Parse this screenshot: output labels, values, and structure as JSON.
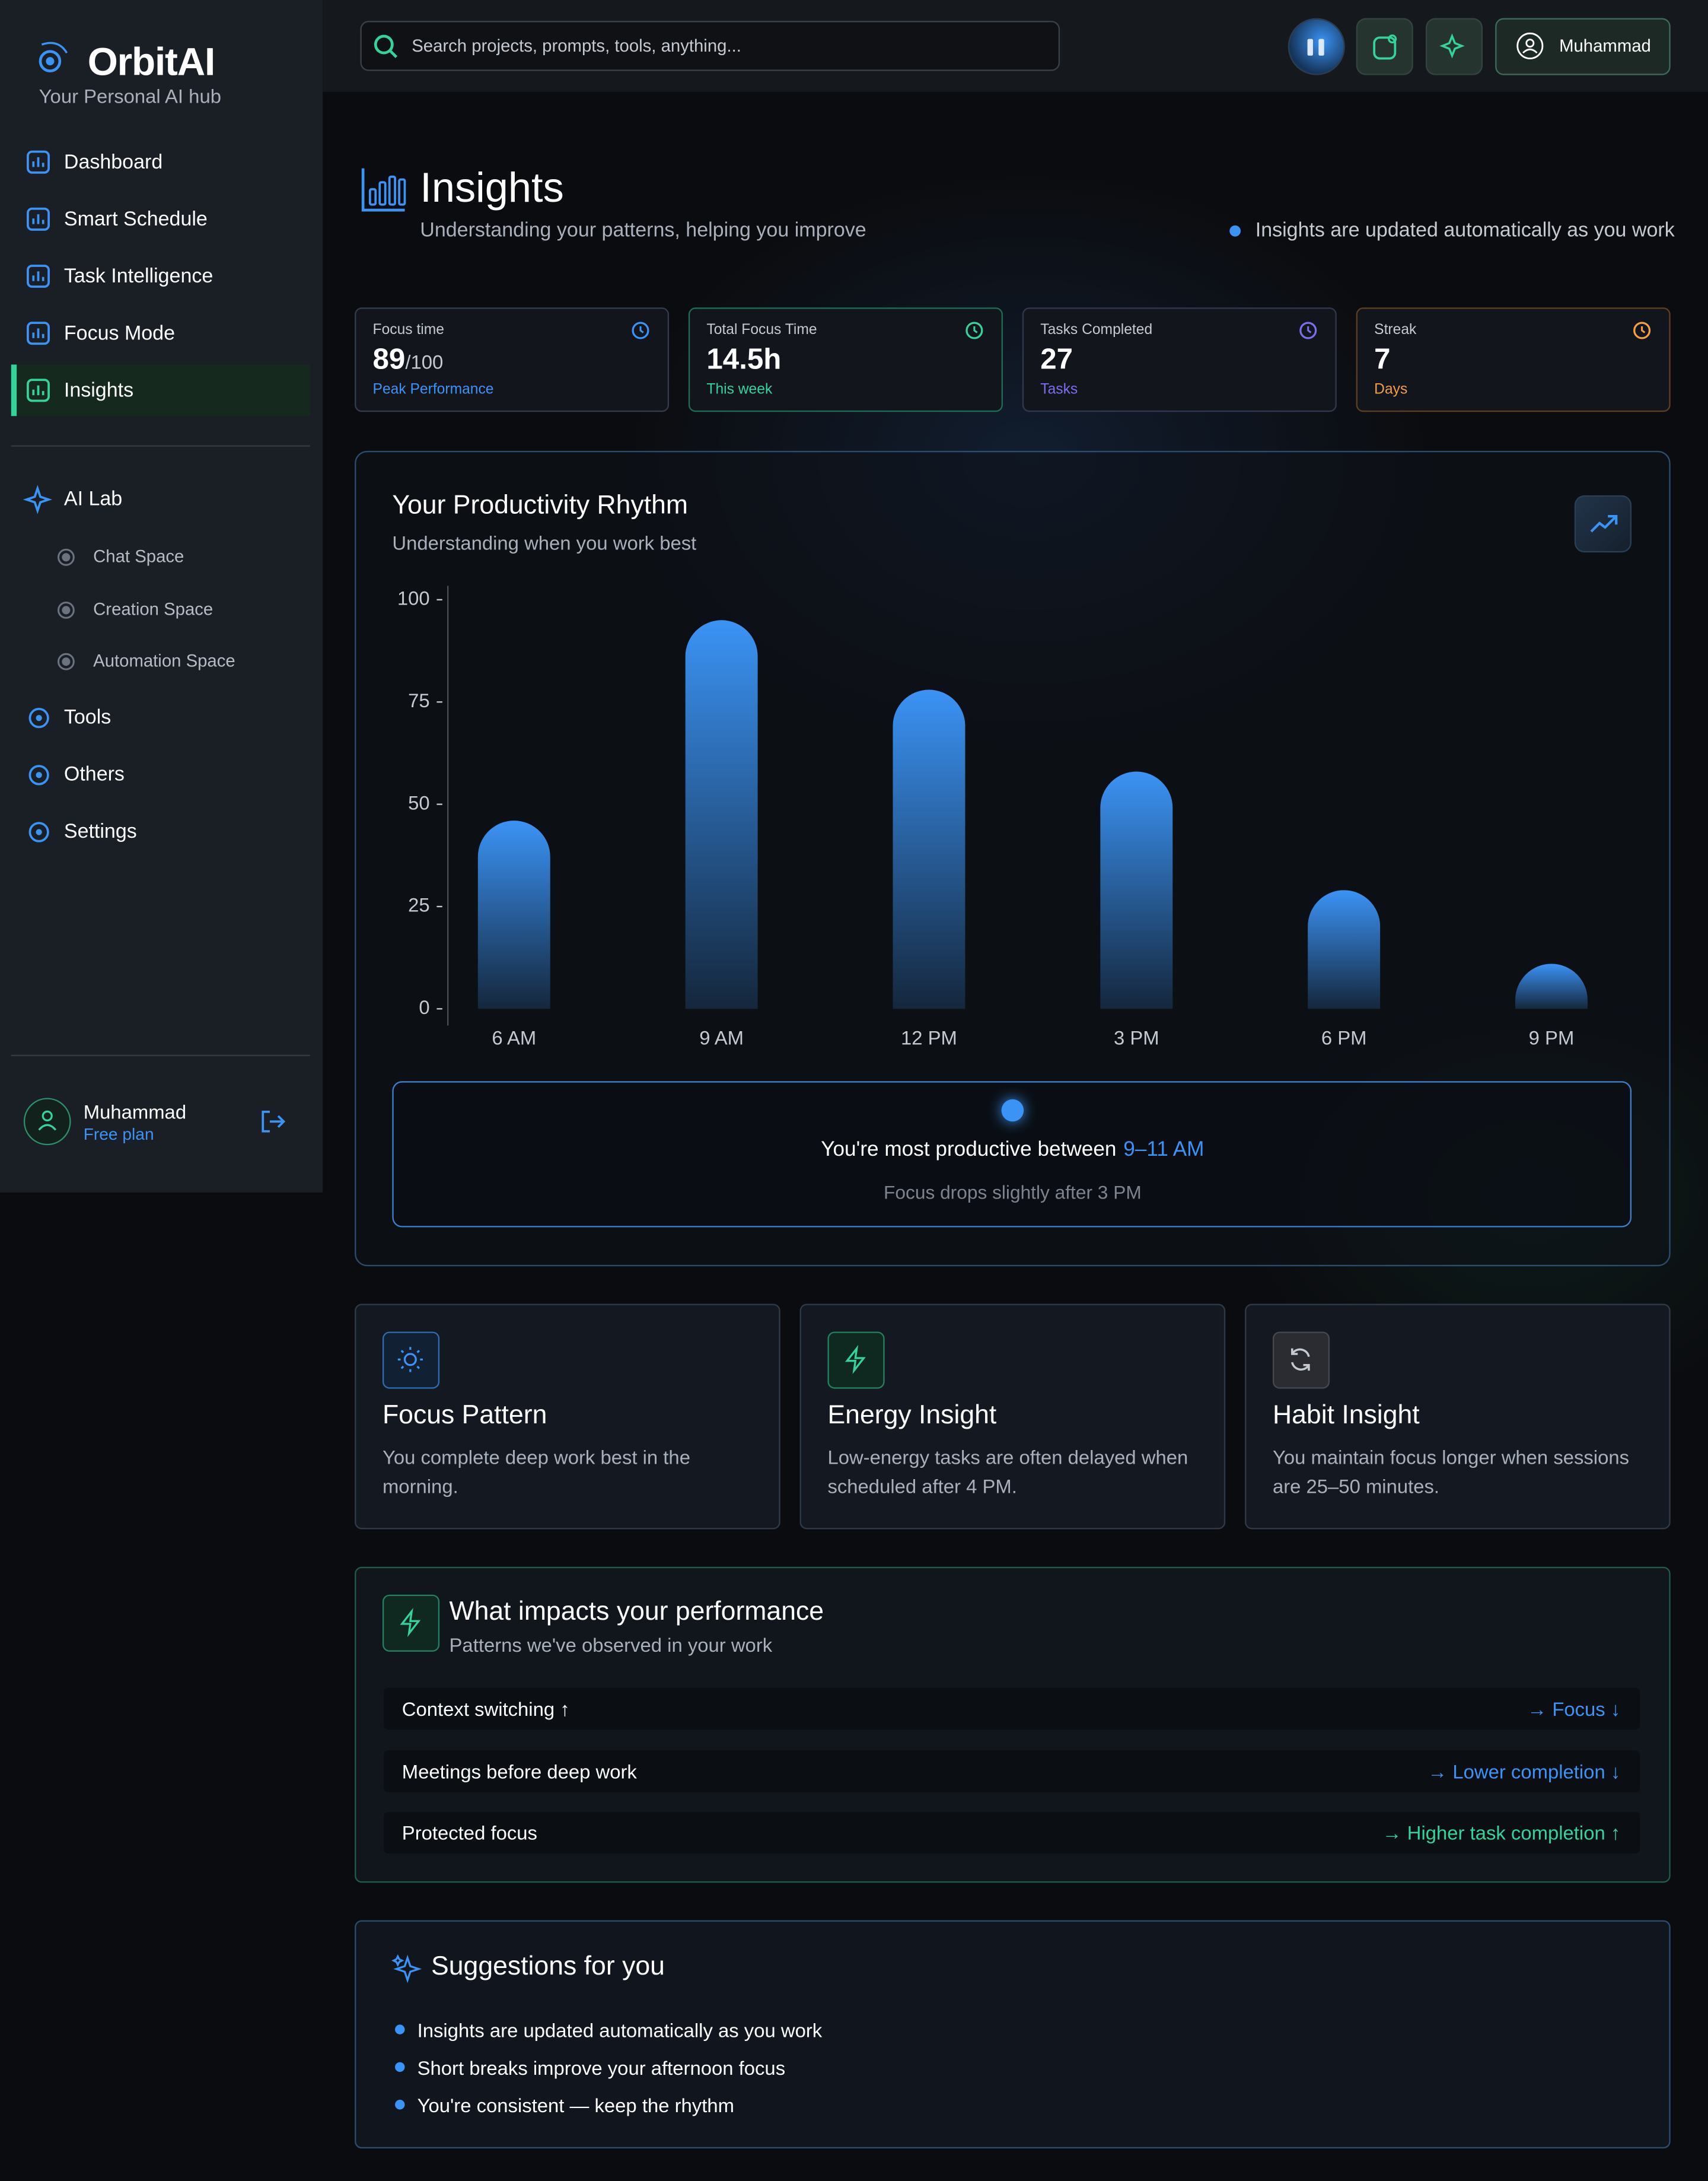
{
  "sidebar": {
    "brand": "OrbitAI",
    "tagline": "Your Personal AI hub",
    "nav": [
      "Dashboard",
      "Smart Schedule",
      "Task Intelligence",
      "Focus Mode",
      "Insights"
    ],
    "ai_lab": "AI Lab",
    "ai_lab_items": [
      "Chat Space",
      "Creation Space",
      "Automation Space"
    ],
    "more": [
      "Tools",
      "Others",
      "Settings"
    ],
    "user": {
      "name": "Muhammad",
      "plan": "Free plan"
    }
  },
  "topbar": {
    "search_placeholder": "Search projects, prompts, tools, anything...",
    "user": "Muhammad"
  },
  "header": {
    "title": "Insights",
    "subtitle": "Understanding your patterns, helping you improve",
    "note": "Insights are updated automatically as you work"
  },
  "stats": [
    {
      "label": "Focus time",
      "value": "89",
      "suffix": "/100",
      "sub": "Peak Performance"
    },
    {
      "label": "Total Focus Time",
      "value": "14.5h",
      "sub": "This week"
    },
    {
      "label": "Tasks Completed",
      "value": "27",
      "sub": "Tasks"
    },
    {
      "label": "Streak",
      "value": "7",
      "sub": "Days"
    }
  ],
  "chart_data": {
    "type": "bar",
    "title": "Your Productivity Rhythm",
    "subtitle": "Understanding when you work best",
    "categories": [
      "6 AM",
      "9 AM",
      "12 PM",
      "3 PM",
      "6 PM",
      "9 PM"
    ],
    "values": [
      46,
      95,
      78,
      58,
      29,
      11
    ],
    "color": "#3b93f5",
    "ylim": [
      0,
      100
    ],
    "yticks": [
      0,
      25,
      50,
      75,
      100
    ],
    "grid": false
  },
  "callout": {
    "text": "You're most productive between",
    "highlight": "9–11 AM",
    "note": "Focus drops slightly after 3 PM"
  },
  "insight_cards": [
    {
      "title": "Focus Pattern",
      "text": "You complete deep work best in the morning."
    },
    {
      "title": "Energy Insight",
      "text": "Low-energy tasks are often delayed when scheduled after 4 PM."
    },
    {
      "title": "Habit Insight",
      "text": "You maintain focus longer when sessions are 25–50 minutes."
    }
  ],
  "impacts": {
    "title": "What impacts your performance",
    "subtitle": "Patterns we've observed in your work",
    "rows": [
      {
        "factor": "Context switching ↑",
        "effect": "→ Focus ↓"
      },
      {
        "factor": "Meetings before deep work",
        "effect": "→ Lower completion ↓"
      },
      {
        "factor": "Protected focus",
        "effect": "→ Higher task completion ↑"
      }
    ]
  },
  "suggestions": {
    "title": "Suggestions for you",
    "items": [
      "Insights are updated automatically as you work",
      "Short breaks improve your afternoon focus",
      "You're consistent — keep the rhythm"
    ]
  }
}
